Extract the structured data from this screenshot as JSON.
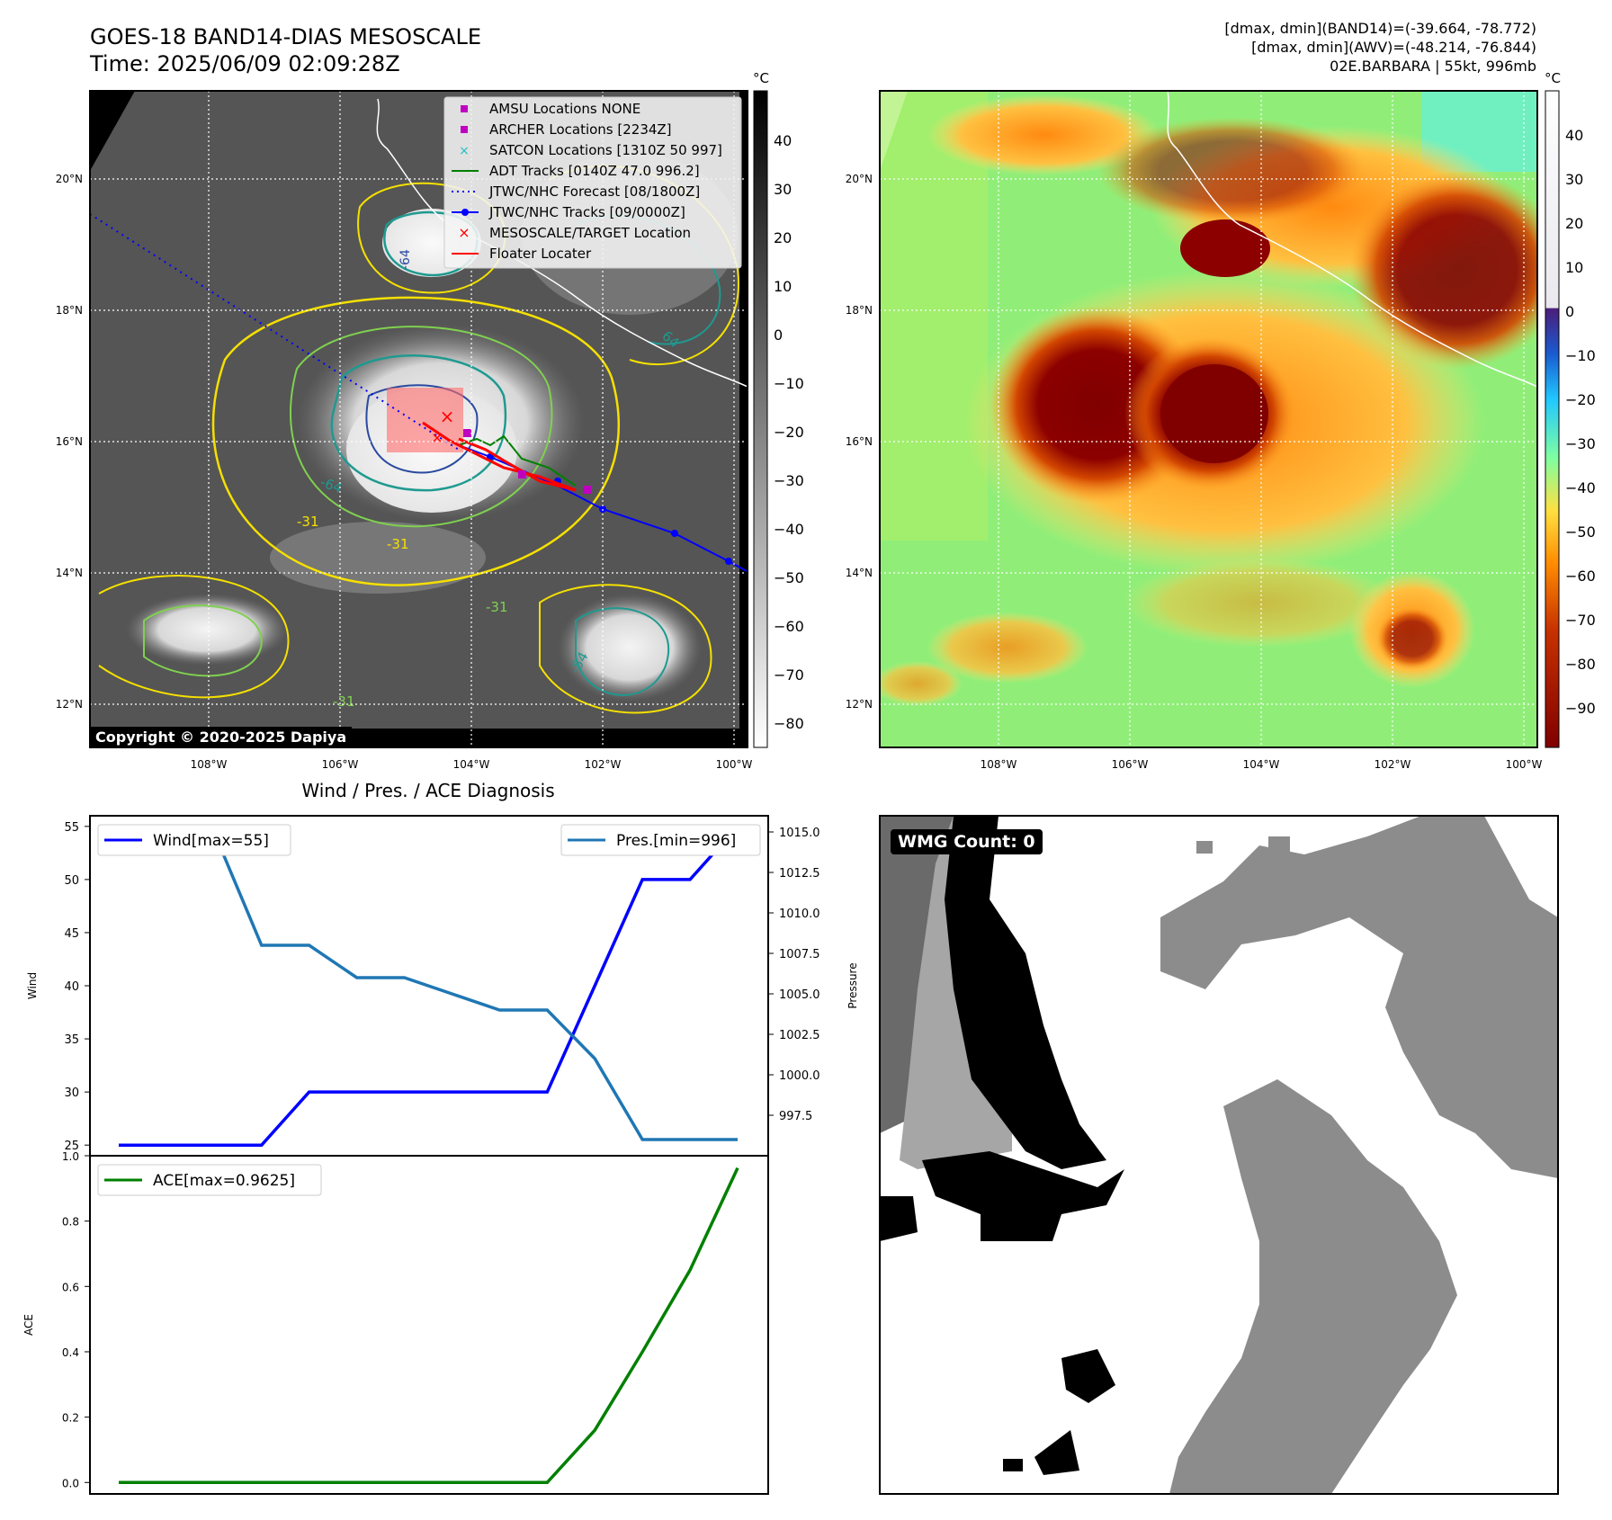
{
  "header": {
    "title_line1": "GOES-18 BAND14-DIAS MESOSCALE",
    "title_line2": "Time: 2025/06/09 02:09:28Z",
    "info_line1": "[dmax, dmin](BAND14)=(-39.664, -78.772)",
    "info_line2": "[dmax, dmin](AWV)=(-48.214, -76.844)",
    "info_line3": "02E.BARBARA | 55kt, 996mb"
  },
  "map": {
    "lon_ticks": [
      "108°W",
      "106°W",
      "104°W",
      "102°W",
      "100°W"
    ],
    "lat_ticks": [
      "20°N",
      "18°N",
      "16°N",
      "14°N",
      "12°N"
    ],
    "copyright": "Copyright © 2020-2025 Dapiya",
    "contour_labels": [
      "-64",
      "-31",
      "-31",
      "-31",
      "-54",
      "-31",
      "-64",
      "64"
    ],
    "legend": [
      {
        "label": "AMSU Locations NONE",
        "color": "#c000c0",
        "symbol": "square"
      },
      {
        "label": "ARCHER Locations [2234Z]",
        "color": "#c000c0",
        "symbol": "square"
      },
      {
        "label": "SATCON Locations [1310Z 50 997]",
        "color": "#20c0c0",
        "symbol": "x"
      },
      {
        "label": "ADT Tracks [0140Z 47.0 996.2]",
        "color": "#008000",
        "symbol": "line"
      },
      {
        "label": "JTWC/NHC Forecast [08/1800Z]",
        "color": "#0000ff",
        "symbol": "dotted"
      },
      {
        "label": "JTWC/NHC Tracks [09/0000Z]",
        "color": "#0000ff",
        "symbol": "line-dot"
      },
      {
        "label": "MESOSCALE/TARGET Location",
        "color": "#ff0000",
        "symbol": "x"
      },
      {
        "label": "Floater Locater",
        "color": "#ff0000",
        "symbol": "line"
      }
    ]
  },
  "colorbar_bw": {
    "unit": "°C",
    "ticks": [
      "40",
      "30",
      "20",
      "10",
      "0",
      "−10",
      "−20",
      "−30",
      "−40",
      "−50",
      "−60",
      "−70",
      "−80"
    ]
  },
  "colorbar_color": {
    "unit": "°C",
    "ticks": [
      "40",
      "30",
      "20",
      "10",
      "0",
      "−10",
      "−20",
      "−30",
      "−40",
      "−50",
      "−60",
      "−70",
      "−80",
      "−90"
    ]
  },
  "wmg": {
    "label": "WMG Count: 0"
  },
  "chart_data": [
    {
      "type": "line",
      "title": "Wind / Pres. / ACE Diagnosis",
      "ylabel": "Wind",
      "ylabel_right": "Pressure",
      "ylim": [
        24,
        56
      ],
      "ylim_right": [
        995.0,
        1016.0
      ],
      "yticks": [
        "55",
        "50",
        "45",
        "40",
        "35",
        "30",
        "25"
      ],
      "yticks_right": [
        "1015.0",
        "1012.5",
        "1010.0",
        "1007.5",
        "1005.0",
        "1002.5",
        "1000.0",
        "997.5"
      ],
      "series": [
        {
          "name": "Wind[max=55]",
          "color": "#0000ff",
          "values": [
            25,
            25,
            25,
            25,
            30,
            30,
            30,
            30,
            30,
            30,
            40,
            50,
            50,
            55
          ]
        },
        {
          "name": "Pres.[min=996]",
          "color": "#1f77b4",
          "values": [
            1015,
            1015,
            1015,
            1008,
            1008,
            1006,
            1006,
            1005,
            1004,
            1004,
            1001,
            996,
            996,
            996
          ]
        }
      ]
    },
    {
      "type": "line",
      "ylabel": "ACE",
      "ylim": [
        -0.035,
        1.0
      ],
      "yticks": [
        "1.0",
        "0.8",
        "0.6",
        "0.4",
        "0.2",
        "0.0"
      ],
      "series": [
        {
          "name": "ACE[max=0.9625]",
          "color": "#008000",
          "values": [
            0,
            0,
            0,
            0,
            0,
            0,
            0,
            0,
            0,
            0,
            0.16,
            0.4,
            0.65,
            0.9625
          ]
        }
      ]
    }
  ]
}
